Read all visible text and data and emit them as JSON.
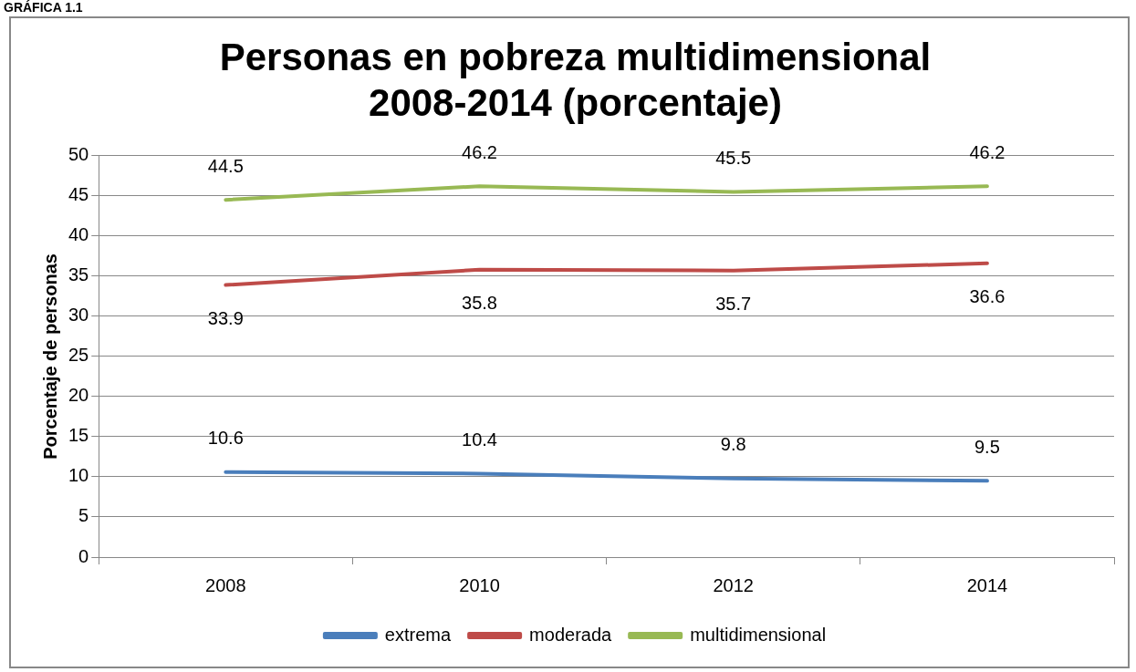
{
  "chart_data": {
    "type": "line",
    "title": [
      "Personas en pobreza multidimensional",
      "2008-2014 (porcentaje)"
    ],
    "annotations": [
      "GRÁFICA 1.1"
    ],
    "ylabel": "Porcentaje de personas",
    "categories": [
      "2008",
      "2010",
      "2012",
      "2014"
    ],
    "series": [
      {
        "name": "extrema",
        "color": "#4a7ebb",
        "values": [
          10.6,
          10.4,
          9.8,
          9.5
        ]
      },
      {
        "name": "moderada",
        "color": "#be4b48",
        "values": [
          33.9,
          35.8,
          35.7,
          36.6
        ]
      },
      {
        "name": "multidimensional",
        "color": "#98b954",
        "values": [
          44.5,
          46.2,
          45.5,
          46.2
        ]
      }
    ],
    "ylim": [
      0,
      50
    ],
    "yticks": [
      0,
      5,
      10,
      15,
      20,
      25,
      30,
      35,
      40,
      45,
      50
    ],
    "grid": "y",
    "legend": "bottom",
    "marker": "none",
    "line_style": "solid",
    "data_labels": true
  }
}
